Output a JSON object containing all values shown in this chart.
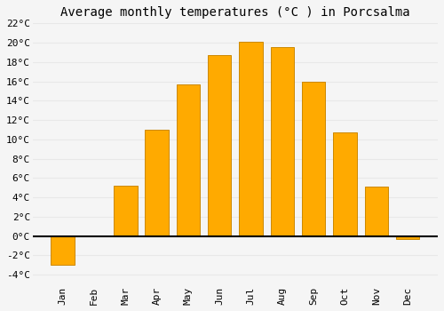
{
  "title": "Average monthly temperatures (°C ) in Porcsalma",
  "months": [
    "Jan",
    "Feb",
    "Mar",
    "Apr",
    "May",
    "Jun",
    "Jul",
    "Aug",
    "Sep",
    "Oct",
    "Nov",
    "Dec"
  ],
  "values": [
    -3.0,
    0.0,
    5.2,
    11.0,
    15.7,
    18.7,
    20.1,
    19.5,
    16.0,
    10.7,
    5.1,
    -0.3
  ],
  "bar_color": "#FFAA00",
  "bar_edge_color": "#CC8800",
  "ylim": [
    -5,
    22
  ],
  "yticks": [
    -4,
    -2,
    0,
    2,
    4,
    6,
    8,
    10,
    12,
    14,
    16,
    18,
    20,
    22
  ],
  "ytick_labels": [
    "-4°C",
    "-2°C",
    "0°C",
    "2°C",
    "4°C",
    "6°C",
    "8°C",
    "10°C",
    "12°C",
    "14°C",
    "16°C",
    "18°C",
    "20°C",
    "22°C"
  ],
  "background_color": "#f5f5f5",
  "plot_bg_color": "#f5f5f5",
  "grid_color": "#e8e8e8",
  "zero_line_color": "#000000",
  "title_fontsize": 10,
  "tick_fontsize": 8,
  "font_family": "monospace"
}
